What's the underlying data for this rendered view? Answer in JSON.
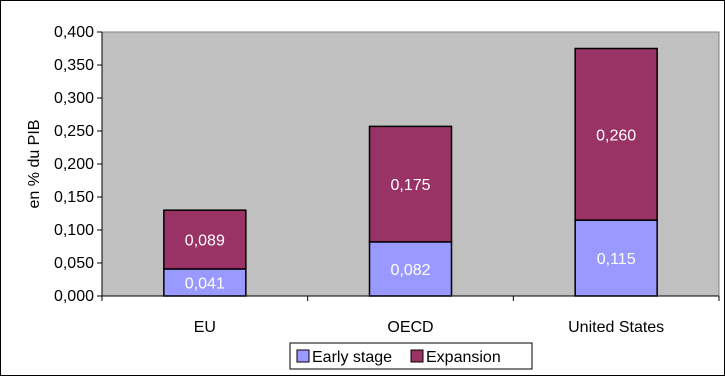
{
  "chart_data": {
    "type": "bar",
    "stacked": true,
    "categories": [
      "EU",
      "OECD",
      "United States"
    ],
    "series": [
      {
        "name": "Early stage",
        "values": [
          0.041,
          0.082,
          0.115
        ],
        "color": "#9999ff"
      },
      {
        "name": "Expansion",
        "values": [
          0.089,
          0.175,
          0.26
        ],
        "color": "#993366"
      }
    ],
    "data_labels": [
      [
        "0,041",
        "0,082",
        "0,115"
      ],
      [
        "0,089",
        "0,175",
        "0,260"
      ]
    ],
    "ylabel": "en % du PIB",
    "xlabel": "",
    "ylim": [
      0,
      0.4
    ],
    "yticks": [
      0,
      0.05,
      0.1,
      0.15,
      0.2,
      0.25,
      0.3,
      0.35,
      0.4
    ],
    "ytick_labels": [
      "0,000",
      "0,050",
      "0,100",
      "0,150",
      "0,200",
      "0,250",
      "0,300",
      "0,350",
      "0,400"
    ],
    "grid": false,
    "legend_position": "bottom",
    "plot_background": "#c0c0c0"
  }
}
